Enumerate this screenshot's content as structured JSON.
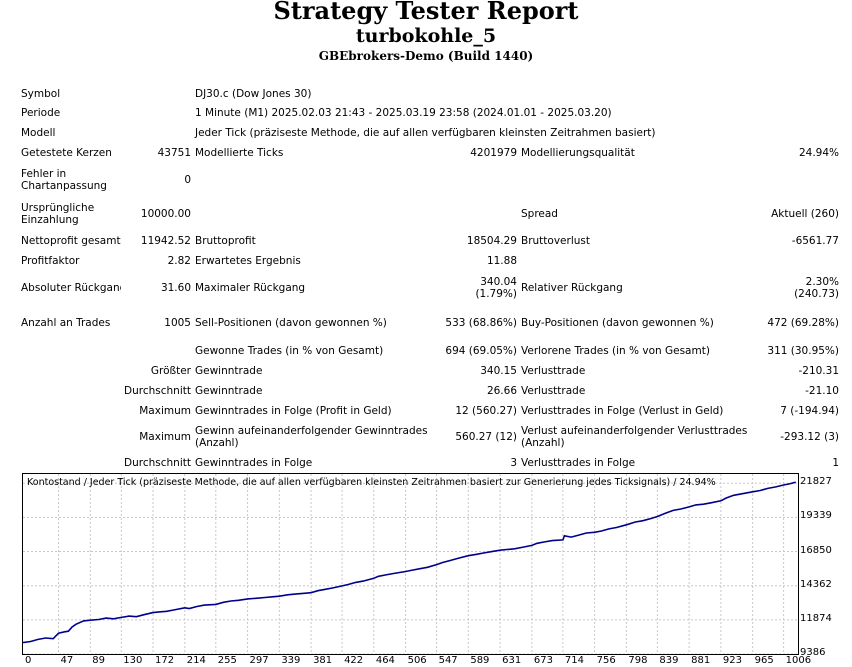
{
  "header": {
    "title": "Strategy Tester Report",
    "subtitle": "turbokohle_5",
    "broker": "GBEbrokers-Demo (Build 1440)"
  },
  "rows": [
    {
      "h": 19,
      "cells": [
        {
          "t": "Symbol"
        },
        {
          "t": ""
        },
        {
          "t": "DJ30.c (Dow Jones 30)",
          "span": 4
        }
      ]
    },
    {
      "h": 20,
      "cells": [
        {
          "t": "Periode"
        },
        {
          "t": ""
        },
        {
          "t": "1 Minute (M1) 2025.02.03 21:43 - 2025.03.19 23:58 (2024.01.01 - 2025.03.20)",
          "span": 4
        }
      ]
    },
    {
      "h": 20,
      "cells": [
        {
          "t": "Modell"
        },
        {
          "t": ""
        },
        {
          "t": "Jeder Tick (präziseste Methode, die auf allen verfügbaren kleinsten Zeitrahmen basiert)",
          "span": 4
        }
      ]
    },
    {
      "h": 20,
      "cells": [
        {
          "t": "Getestete Kerzen"
        },
        {
          "t": "43751",
          "r": 1
        },
        {
          "t": "Modellierte Ticks"
        },
        {
          "t": "4201979",
          "r": 1
        },
        {
          "t": "Modellierungsqualität"
        },
        {
          "t": "24.94%",
          "r": 1
        }
      ]
    },
    {
      "h": 34,
      "cells": [
        {
          "t": "Fehler in Chartanpassung",
          "w": 1
        },
        {
          "t": "0",
          "r": 1
        },
        {
          "t": ""
        },
        {
          "t": ""
        },
        {
          "t": ""
        },
        {
          "t": ""
        }
      ]
    },
    {
      "h": 34,
      "cells": [
        {
          "t": "Ursprüngliche Einzahlung",
          "w": 1
        },
        {
          "t": "10000.00",
          "r": 1
        },
        {
          "t": ""
        },
        {
          "t": ""
        },
        {
          "t": "Spread"
        },
        {
          "t": "Aktuell (260)",
          "r": 1
        }
      ]
    },
    {
      "h": 20,
      "cells": [
        {
          "t": "Nettoprofit gesamt"
        },
        {
          "t": "11942.52",
          "r": 1
        },
        {
          "t": "Bruttoprofit"
        },
        {
          "t": "18504.29",
          "r": 1
        },
        {
          "t": "Bruttoverlust"
        },
        {
          "t": "-6561.77",
          "r": 1
        }
      ]
    },
    {
      "h": 20,
      "cells": [
        {
          "t": "Profitfaktor"
        },
        {
          "t": "2.82",
          "r": 1
        },
        {
          "t": "Erwartetes Ergebnis"
        },
        {
          "t": "11.88",
          "r": 1
        },
        {
          "t": ""
        },
        {
          "t": ""
        }
      ]
    },
    {
      "h": 34,
      "cells": [
        {
          "t": "Absoluter Rückgang"
        },
        {
          "t": "31.60",
          "r": 1
        },
        {
          "t": "Maximaler Rückgang"
        },
        {
          "t": "340.04",
          "t2": "(1.79%)",
          "r": 1
        },
        {
          "t": "Relativer Rückgang"
        },
        {
          "t": "2.30%",
          "t2": "(240.73)",
          "r": 1
        }
      ]
    },
    {
      "h": 36,
      "cells": [
        {
          "t": "Anzahl an Trades"
        },
        {
          "t": "1005",
          "r": 1
        },
        {
          "t": "Sell-Positionen (davon gewonnen %)"
        },
        {
          "t": "533 (68.86%)",
          "r": 1
        },
        {
          "t": "Buy-Positionen (davon gewonnen %)"
        },
        {
          "t": "472 (69.28%)",
          "r": 1
        }
      ]
    },
    {
      "h": 20,
      "cells": [
        {
          "t": ""
        },
        {
          "t": ""
        },
        {
          "t": "Gewonne Trades (in % von Gesamt)"
        },
        {
          "t": "694 (69.05%)",
          "r": 1
        },
        {
          "t": "Verlorene Trades (in % von Gesamt)"
        },
        {
          "t": "311 (30.95%)",
          "r": 1
        }
      ]
    },
    {
      "h": 20,
      "cells": [
        {
          "t": ""
        },
        {
          "t": "Größter",
          "r": 1
        },
        {
          "t": "Gewinntrade"
        },
        {
          "t": "340.15",
          "r": 1
        },
        {
          "t": "Verlusttrade"
        },
        {
          "t": "-210.31",
          "r": 1
        }
      ]
    },
    {
      "h": 20,
      "cells": [
        {
          "t": ""
        },
        {
          "t": "Durchschnitt",
          "r": 1
        },
        {
          "t": "Gewinntrade"
        },
        {
          "t": "26.66",
          "r": 1
        },
        {
          "t": "Verlusttrade"
        },
        {
          "t": "-21.10",
          "r": 1
        }
      ]
    },
    {
      "h": 20,
      "cells": [
        {
          "t": ""
        },
        {
          "t": "Maximum",
          "r": 1
        },
        {
          "t": "Gewinntrades in Folge (Profit in Geld)"
        },
        {
          "t": "12 (560.27)",
          "r": 1
        },
        {
          "t": "Verlusttrades in Folge (Verlust in Geld)"
        },
        {
          "t": "7 (-194.94)",
          "r": 1
        }
      ]
    },
    {
      "h": 32,
      "cells": [
        {
          "t": ""
        },
        {
          "t": "Maximum",
          "r": 1
        },
        {
          "t": "Gewinn aufeinanderfolgender Gewinntrades (Anzahl)",
          "w": 1
        },
        {
          "t": "560.27 (12)",
          "r": 1
        },
        {
          "t": "Verlust aufeinanderfolgender Verlusttrades (Anzahl)",
          "w": 1
        },
        {
          "t": "-293.12 (3)",
          "r": 1
        }
      ]
    },
    {
      "h": 20,
      "cells": [
        {
          "t": ""
        },
        {
          "t": "Durchschnitt",
          "r": 1
        },
        {
          "t": "Gewinntrades in Folge"
        },
        {
          "t": "3",
          "r": 1
        },
        {
          "t": "Verlusttrades in Folge"
        },
        {
          "t": "1",
          "r": 1
        }
      ]
    }
  ],
  "chart_data": {
    "type": "line",
    "title": "Kontostand / Jeder Tick (präziseste Methode, die auf allen verfügbaren kleinsten Zeitrahmen basiert zur Generierung jedes Ticksignals) / 24.94%",
    "x_ticks": [
      0,
      47,
      89,
      130,
      172,
      214,
      255,
      297,
      339,
      381,
      422,
      464,
      506,
      547,
      589,
      631,
      673,
      714,
      756,
      798,
      839,
      881,
      923,
      965,
      1006
    ],
    "y_ticks": [
      21827,
      19339,
      16850,
      14362,
      11874,
      9386
    ],
    "xlim": [
      0,
      1025
    ],
    "ylim": [
      9386,
      22500
    ],
    "line_color": "#00008b",
    "grid": true,
    "series": [
      {
        "x": [
          0,
          10,
          20,
          30,
          40,
          47,
          55,
          60,
          65,
          70,
          80,
          89,
          100,
          110,
          120,
          130,
          140,
          150,
          160,
          172,
          180,
          190,
          200,
          214,
          220,
          230,
          240,
          255,
          265,
          275,
          285,
          297,
          310,
          320,
          330,
          339,
          350,
          360,
          370,
          381,
          390,
          400,
          410,
          422,
          430,
          440,
          450,
          464,
          470,
          480,
          490,
          506,
          515,
          525,
          535,
          547,
          555,
          565,
          575,
          589,
          600,
          610,
          620,
          631,
          640,
          650,
          660,
          673,
          680,
          690,
          700,
          714,
          716,
          725,
          735,
          745,
          756,
          765,
          775,
          785,
          798,
          810,
          820,
          830,
          839,
          850,
          860,
          870,
          881,
          890,
          900,
          910,
          923,
          930,
          940,
          955,
          965,
          975,
          985,
          995,
          1006,
          1015,
          1022
        ],
        "y": [
          10220,
          10300,
          10450,
          10550,
          10500,
          10900,
          11000,
          11050,
          11350,
          11550,
          11800,
          11850,
          11900,
          12000,
          11950,
          12050,
          12150,
          12100,
          12250,
          12400,
          12450,
          12500,
          12600,
          12750,
          12700,
          12850,
          12950,
          13000,
          13150,
          13250,
          13300,
          13400,
          13450,
          13500,
          13550,
          13600,
          13700,
          13750,
          13800,
          13850,
          14000,
          14100,
          14200,
          14350,
          14450,
          14600,
          14700,
          14900,
          15050,
          15150,
          15250,
          15400,
          15500,
          15600,
          15700,
          15900,
          16050,
          16200,
          16350,
          16550,
          16650,
          16750,
          16850,
          16950,
          17000,
          17050,
          17150,
          17300,
          17450,
          17550,
          17650,
          17700,
          18000,
          17900,
          18050,
          18200,
          18250,
          18350,
          18500,
          18600,
          18800,
          19000,
          19100,
          19250,
          19400,
          19650,
          19850,
          19950,
          20100,
          20250,
          20300,
          20400,
          20550,
          20750,
          20950,
          21100,
          21200,
          21300,
          21450,
          21550,
          21700,
          21800,
          21900
        ]
      }
    ]
  }
}
